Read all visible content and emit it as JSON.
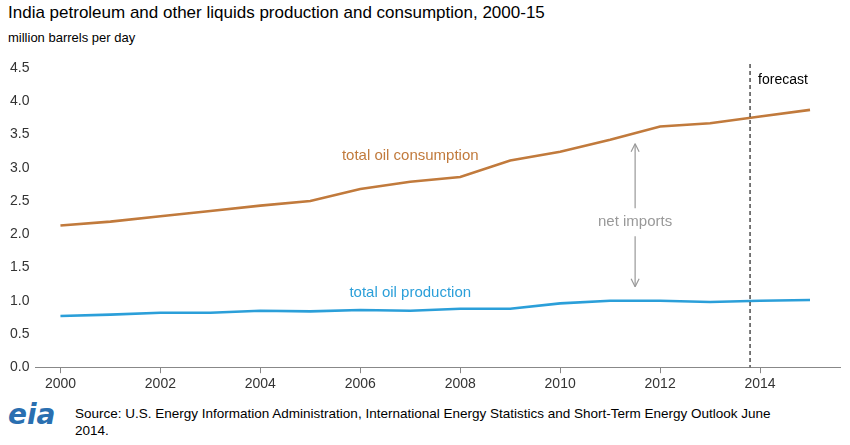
{
  "chart_data": {
    "type": "line",
    "title": "India petroleum and other liquids production and consumption, 2000-15",
    "y_label": "million barrels per day",
    "x": [
      2000,
      2001,
      2002,
      2003,
      2004,
      2005,
      2006,
      2007,
      2008,
      2009,
      2010,
      2011,
      2012,
      2013,
      2014,
      2015
    ],
    "series": [
      {
        "name": "total oil consumption",
        "color": "#c17a3c",
        "values": [
          2.13,
          2.19,
          2.27,
          2.35,
          2.43,
          2.5,
          2.68,
          2.79,
          2.86,
          3.11,
          3.24,
          3.42,
          3.62,
          3.67,
          3.77,
          3.87
        ]
      },
      {
        "name": "total oil production",
        "color": "#2b9fd9",
        "values": [
          0.77,
          0.79,
          0.82,
          0.82,
          0.85,
          0.84,
          0.86,
          0.85,
          0.88,
          0.88,
          0.96,
          1.0,
          1.0,
          0.98,
          1.0,
          1.01
        ]
      }
    ],
    "xlim": [
      1999.5,
      2015.6
    ],
    "xticks": [
      2000,
      2002,
      2004,
      2006,
      2008,
      2010,
      2012,
      2014
    ],
    "ylim": [
      0,
      4.5
    ],
    "yticks": [
      {
        "value": 0,
        "label": "0.0"
      },
      0.5,
      {
        "value": 1,
        "label": "1.0"
      },
      1.5,
      {
        "value": 2,
        "label": "2.0"
      },
      2.5,
      {
        "value": 3,
        "label": "3.0"
      },
      3.5,
      {
        "value": 4,
        "label": "4.0"
      },
      4.5
    ],
    "grid": false,
    "annotations": [
      {
        "text": "forecast",
        "x": 2013.8,
        "line_style": "dashed"
      },
      {
        "text": "net imports",
        "x": 2011.5,
        "y": 2.18,
        "arrow_from": 3.36,
        "arrow_to": 1.21
      }
    ],
    "source": "Source: U.S. Energy Information Administration, International Energy Statistics and Short-Term Energy Outlook June 2014.",
    "logo": "eia"
  }
}
